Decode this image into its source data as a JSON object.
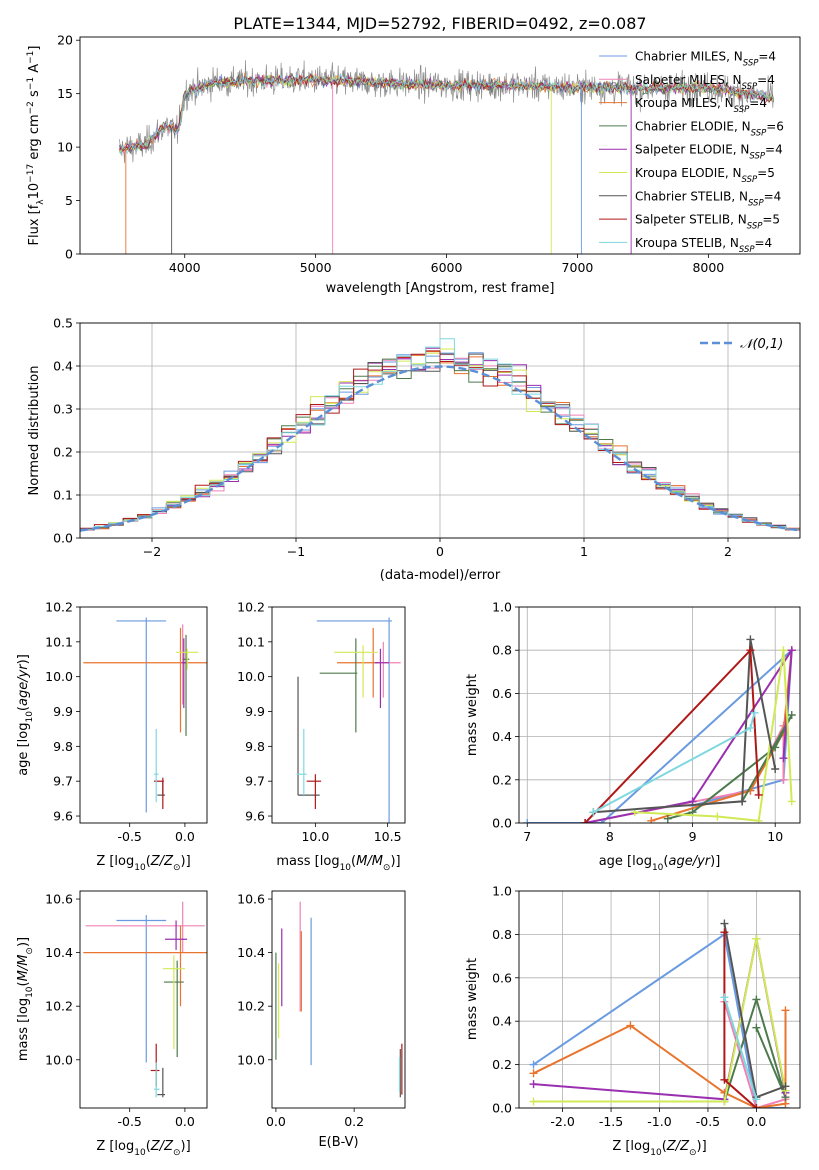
{
  "figure_title": "PLATE=1344, MJD=52792, FIBERID=0492, z=0.087",
  "models": [
    {
      "name": "Chabrier MILES",
      "nssp": "4",
      "color": "#6a9be0"
    },
    {
      "name": "Salpeter MILES",
      "nssp": "4",
      "color": "#ef82b5"
    },
    {
      "name": "Kroupa MILES",
      "nssp": "4",
      "color": "#e8742e"
    },
    {
      "name": "Chabrier ELODIE",
      "nssp": "6",
      "color": "#4d7a4d"
    },
    {
      "name": "Salpeter ELODIE",
      "nssp": "4",
      "color": "#9a2fb0"
    },
    {
      "name": "Kroupa ELODIE",
      "nssp": "5",
      "color": "#d0ea55"
    },
    {
      "name": "Chabrier STELIB",
      "nssp": "4",
      "color": "#555555"
    },
    {
      "name": "Salpeter STELIB",
      "nssp": "5",
      "color": "#b01818"
    },
    {
      "name": "Kroupa STELIB",
      "nssp": "4",
      "color": "#7fd8df"
    }
  ],
  "chart_data": [
    {
      "id": "spectrum",
      "type": "line",
      "xlabel": "wavelength [Angstrom, rest frame]",
      "ylabel": "Flux [f_λ 10^-17 erg cm^-2 s^-1 A^-1]",
      "xlim": [
        3200,
        8700
      ],
      "ylim": [
        0,
        20.3
      ],
      "xticks": [
        4000,
        5000,
        6000,
        7000,
        8000
      ],
      "yticks": [
        0,
        5,
        10,
        15,
        20
      ],
      "data_color": "#8c8c8c",
      "data_range": [
        3500,
        8500
      ],
      "continuum_knots": [
        [
          3500,
          9.8
        ],
        [
          3700,
          10.2
        ],
        [
          3850,
          12.0
        ],
        [
          3950,
          11.5
        ],
        [
          4000,
          15.0
        ],
        [
          4200,
          16.0
        ],
        [
          4500,
          16.2
        ],
        [
          5000,
          16.3
        ],
        [
          5500,
          16.0
        ],
        [
          6000,
          15.8
        ],
        [
          6500,
          15.8
        ],
        [
          7000,
          15.6
        ],
        [
          7500,
          15.5
        ],
        [
          8000,
          15.6
        ],
        [
          8500,
          14.6
        ]
      ],
      "legend_placement": "top-right"
    },
    {
      "id": "residual-histogram",
      "type": "histogram",
      "xlabel": "(data-model)/error",
      "ylabel": "Normed distribution",
      "xlim": [
        -2.5,
        2.5
      ],
      "ylim": [
        0,
        0.5
      ],
      "xticks": [
        -2,
        -1,
        0,
        1,
        2
      ],
      "yticks": [
        0.0,
        0.1,
        0.2,
        0.3,
        0.4,
        0.5
      ],
      "bin_width": 0.1,
      "reference_curve": {
        "label": "𝒩(0,1)",
        "color": "#5b8fd6",
        "mean": 0,
        "sigma": 1
      },
      "grid": true,
      "legend_placement": "top-right"
    },
    {
      "id": "age-vs-Z",
      "type": "errorbar",
      "xlabel": "Z [log10(Z/Z⊙)]",
      "ylabel": "age [log10(age/yr)]",
      "xlim": [
        -0.95,
        0.2
      ],
      "ylim": [
        9.58,
        10.2
      ],
      "xticks": [
        -0.5,
        0.0
      ],
      "yticks": [
        9.6,
        9.7,
        9.8,
        9.9,
        10.0,
        10.1,
        10.2
      ],
      "points": [
        {
          "model": 0,
          "x": -0.35,
          "xerr": [
            0.27,
            0.18
          ],
          "y": 10.16,
          "yerr": [
            0.55,
            0.01
          ]
        },
        {
          "model": 1,
          "x": -0.02,
          "xerr": [
            0.02,
            0.02
          ],
          "y": 10.07,
          "yerr": [
            0.15,
            0.08
          ]
        },
        {
          "model": 2,
          "x": -0.04,
          "xerr": [
            0.88,
            0.25
          ],
          "y": 10.04,
          "yerr": [
            0.2,
            0.1
          ]
        },
        {
          "model": 3,
          "x": 0.01,
          "xerr": [
            0.03,
            0.03
          ],
          "y": 10.05,
          "yerr": [
            0.22,
            0.07
          ]
        },
        {
          "model": 4,
          "x": -0.01,
          "xerr": [
            0.02,
            0.02
          ],
          "y": 10.04,
          "yerr": [
            0.13,
            0.07
          ]
        },
        {
          "model": 5,
          "x": 0.02,
          "xerr": [
            0.1,
            0.1
          ],
          "y": 10.07,
          "yerr": [
            0.05,
            0.01
          ]
        },
        {
          "model": 6,
          "x": -0.2,
          "xerr": [
            0.05,
            0.02
          ],
          "y": 9.66,
          "yerr": [
            0.0,
            0.04
          ]
        },
        {
          "model": 7,
          "x": -0.2,
          "xerr": [
            0.08,
            0.01
          ],
          "y": 9.7,
          "yerr": [
            0.08,
            0.01
          ]
        },
        {
          "model": 8,
          "x": -0.26,
          "xerr": [
            0.02,
            0.02
          ],
          "y": 9.72,
          "yerr": [
            0.08,
            0.13
          ]
        }
      ]
    },
    {
      "id": "age-vs-mass",
      "type": "errorbar",
      "xlabel": "mass [log10(M/M⊙)]",
      "ylabel": "",
      "xlim": [
        9.7,
        10.62
      ],
      "ylim": [
        9.58,
        10.2
      ],
      "xticks": [
        10.0,
        10.5
      ],
      "yticks": [
        9.6,
        9.7,
        9.8,
        9.9,
        10.0,
        10.1,
        10.2
      ],
      "points": [
        {
          "model": 0,
          "x": 10.51,
          "xerr": [
            0.5,
            0.02
          ],
          "y": 10.16,
          "yerr": [
            0.58,
            0.01
          ]
        },
        {
          "model": 1,
          "x": 10.47,
          "xerr": [
            0.05,
            0.12
          ],
          "y": 10.04,
          "yerr": [
            0.1,
            0.06
          ]
        },
        {
          "model": 2,
          "x": 10.4,
          "xerr": [
            0.25,
            0.03
          ],
          "y": 10.04,
          "yerr": [
            0.1,
            0.1
          ]
        },
        {
          "model": 3,
          "x": 10.28,
          "xerr": [
            0.25,
            0.01
          ],
          "y": 10.01,
          "yerr": [
            0.17,
            0.1
          ]
        },
        {
          "model": 4,
          "x": 10.45,
          "xerr": [
            0.04,
            0.06
          ],
          "y": 10.04,
          "yerr": [
            0.13,
            0.04
          ]
        },
        {
          "model": 5,
          "x": 10.33,
          "xerr": [
            0.2,
            0.1
          ],
          "y": 10.07,
          "yerr": [
            0.13,
            0.02
          ]
        },
        {
          "model": 6,
          "x": 9.88,
          "xerr": [
            0.0,
            0.15
          ],
          "y": 9.66,
          "yerr": [
            0.0,
            0.34
          ]
        },
        {
          "model": 7,
          "x": 10.0,
          "xerr": [
            0.06,
            0.04
          ],
          "y": 9.7,
          "yerr": [
            0.08,
            0.02
          ]
        },
        {
          "model": 8,
          "x": 9.92,
          "xerr": [
            0.05,
            0.02
          ],
          "y": 9.72,
          "yerr": [
            0.06,
            0.13
          ]
        }
      ]
    },
    {
      "id": "weight-vs-age",
      "type": "line",
      "xlabel": "age [log10(age/yr)]",
      "ylabel": "mass weight",
      "xlim": [
        6.9,
        10.3
      ],
      "ylim": [
        0,
        1.0
      ],
      "xticks": [
        7,
        8,
        9,
        10
      ],
      "yticks": [
        0.0,
        0.2,
        0.4,
        0.6,
        0.8,
        1.0
      ],
      "grid": true,
      "series": [
        {
          "model": 0,
          "points": [
            [
              7.0,
              0.0
            ],
            [
              7.9,
              0.0
            ],
            [
              10.2,
              0.8
            ],
            [
              10.1,
              0.2
            ],
            [
              9.0,
              0.08
            ]
          ]
        },
        {
          "model": 1,
          "points": [
            [
              7.7,
              0.0
            ],
            [
              9.7,
              0.15
            ],
            [
              10.1,
              0.45
            ],
            [
              10.1,
              0.2
            ]
          ]
        },
        {
          "model": 2,
          "points": [
            [
              8.5,
              0.01
            ],
            [
              9.7,
              0.15
            ],
            [
              10.1,
              0.42
            ],
            [
              10.2,
              0.8
            ]
          ]
        },
        {
          "model": 3,
          "points": [
            [
              8.7,
              0.02
            ],
            [
              9.0,
              0.05
            ],
            [
              10.0,
              0.35
            ],
            [
              10.2,
              0.5
            ],
            [
              9.6,
              0.1
            ]
          ]
        },
        {
          "model": 4,
          "points": [
            [
              7.7,
              0.0
            ],
            [
              9.0,
              0.1
            ],
            [
              10.2,
              0.8
            ],
            [
              10.1,
              0.3
            ]
          ]
        },
        {
          "model": 5,
          "points": [
            [
              8.3,
              0.05
            ],
            [
              9.3,
              0.03
            ],
            [
              9.8,
              0.01
            ],
            [
              10.1,
              0.8
            ],
            [
              10.2,
              0.1
            ]
          ]
        },
        {
          "model": 6,
          "points": [
            [
              7.8,
              0.05
            ],
            [
              9.6,
              0.1
            ],
            [
              9.7,
              0.85
            ],
            [
              10.0,
              0.25
            ]
          ]
        },
        {
          "model": 7,
          "points": [
            [
              7.7,
              0.0
            ],
            [
              9.7,
              0.8
            ],
            [
              9.8,
              0.13
            ]
          ]
        },
        {
          "model": 8,
          "points": [
            [
              7.8,
              0.05
            ],
            [
              9.7,
              0.44
            ],
            [
              9.75,
              0.51
            ]
          ]
        }
      ]
    },
    {
      "id": "mass-vs-Z",
      "type": "errorbar",
      "xlabel": "Z [log10(Z/Z⊙)]",
      "ylabel": "mass [log10(M/M⊙)]",
      "xlim": [
        -0.95,
        0.2
      ],
      "ylim": [
        9.82,
        10.63
      ],
      "xticks": [
        -0.5,
        0.0
      ],
      "yticks": [
        10.0,
        10.2,
        10.4,
        10.6
      ],
      "points": [
        {
          "model": 0,
          "x": -0.35,
          "xerr": [
            0.27,
            0.18
          ],
          "y": 10.52,
          "yerr": [
            0.53,
            0.02
          ]
        },
        {
          "model": 1,
          "x": -0.02,
          "xerr": [
            0.88,
            0.2
          ],
          "y": 10.5,
          "yerr": [
            0.1,
            0.09
          ]
        },
        {
          "model": 2,
          "x": -0.04,
          "xerr": [
            0.88,
            0.25
          ],
          "y": 10.4,
          "yerr": [
            0.2,
            0.1
          ]
        },
        {
          "model": 3,
          "x": -0.07,
          "xerr": [
            0.12,
            0.06
          ],
          "y": 10.29,
          "yerr": [
            0.28,
            0.08
          ]
        },
        {
          "model": 4,
          "x": -0.08,
          "xerr": [
            0.1,
            0.1
          ],
          "y": 10.45,
          "yerr": [
            0.04,
            0.07
          ]
        },
        {
          "model": 5,
          "x": -0.1,
          "xerr": [
            0.1,
            0.1
          ],
          "y": 10.34,
          "yerr": [
            0.3,
            0.05
          ]
        },
        {
          "model": 6,
          "x": -0.2,
          "xerr": [
            0.05,
            0.02
          ],
          "y": 9.87,
          "yerr": [
            0.01,
            0.1
          ]
        },
        {
          "model": 7,
          "x": -0.26,
          "xerr": [
            0.05,
            0.03
          ],
          "y": 9.96,
          "yerr": [
            0.06,
            0.1
          ]
        },
        {
          "model": 8,
          "x": -0.26,
          "xerr": [
            0.02,
            0.03
          ],
          "y": 9.89,
          "yerr": [
            0.03,
            0.1
          ]
        }
      ]
    },
    {
      "id": "mass-vs-ebv",
      "type": "errorbar",
      "xlabel": "E(B-V)",
      "ylabel": "",
      "xlim": [
        -0.01,
        0.33
      ],
      "ylim": [
        9.82,
        10.63
      ],
      "xticks": [
        0.0,
        0.2
      ],
      "yticks": [
        10.0,
        10.2,
        10.4,
        10.6
      ],
      "points": [
        {
          "model": 0,
          "x": 0.09,
          "xerr": [
            0,
            0
          ],
          "y": 10.2,
          "yerr": [
            0.22,
            0.33
          ]
        },
        {
          "model": 1,
          "x": 0.062,
          "xerr": [
            0,
            0
          ],
          "y": 10.4,
          "yerr": [
            0.22,
            0.19
          ]
        },
        {
          "model": 2,
          "x": 0.065,
          "xerr": [
            0,
            0
          ],
          "y": 10.3,
          "yerr": [
            0.12,
            0.18
          ]
        },
        {
          "model": 3,
          "x": 0.0,
          "xerr": [
            0,
            0
          ],
          "y": 10.2,
          "yerr": [
            0.2,
            0.2
          ]
        },
        {
          "model": 4,
          "x": 0.015,
          "xerr": [
            0,
            0
          ],
          "y": 10.35,
          "yerr": [
            0.15,
            0.14
          ]
        },
        {
          "model": 5,
          "x": 0.007,
          "xerr": [
            0,
            0
          ],
          "y": 10.24,
          "yerr": [
            0.16,
            0.12
          ]
        },
        {
          "model": 6,
          "x": 0.318,
          "xerr": [
            0,
            0
          ],
          "y": 9.94,
          "yerr": [
            0.08,
            0.1
          ]
        },
        {
          "model": 7,
          "x": 0.322,
          "xerr": [
            0,
            0
          ],
          "y": 9.97,
          "yerr": [
            0.1,
            0.09
          ]
        },
        {
          "model": 8,
          "x": 0.316,
          "xerr": [
            0,
            0
          ],
          "y": 9.93,
          "yerr": [
            0.05,
            0.08
          ]
        }
      ]
    },
    {
      "id": "weight-vs-Z",
      "type": "line",
      "xlabel": "Z [log10(Z/Z⊙)]",
      "ylabel": "mass weight",
      "xlim": [
        -2.45,
        0.45
      ],
      "ylim": [
        0,
        1.0
      ],
      "xticks": [
        -2.0,
        -1.5,
        -1.0,
        -0.5,
        0.0
      ],
      "yticks": [
        0.0,
        0.2,
        0.4,
        0.6,
        0.8,
        1.0
      ],
      "grid": true,
      "series": [
        {
          "model": 0,
          "points": [
            [
              -2.3,
              0.2
            ],
            [
              -0.33,
              0.8
            ],
            [
              0.0,
              0.0
            ],
            [
              0.3,
              0.0
            ]
          ]
        },
        {
          "model": 1,
          "points": [
            [
              -0.33,
              0.49
            ],
            [
              0.0,
              0.0
            ],
            [
              0.3,
              0.04
            ]
          ]
        },
        {
          "model": 2,
          "points": [
            [
              -2.3,
              0.16
            ],
            [
              -1.3,
              0.38
            ],
            [
              -0.33,
              0.07
            ],
            [
              0.0,
              0.0
            ],
            [
              0.3,
              0.02
            ],
            [
              0.3,
              0.45
            ]
          ]
        },
        {
          "model": 3,
          "points": [
            [
              -0.33,
              0.03
            ],
            [
              0.0,
              0.5
            ],
            [
              0.3,
              0.05
            ],
            [
              0.0,
              0.37
            ]
          ]
        },
        {
          "model": 4,
          "points": [
            [
              -2.3,
              0.11
            ],
            [
              -0.33,
              0.04
            ],
            [
              0.0,
              0.78
            ],
            [
              0.3,
              0.07
            ]
          ]
        },
        {
          "model": 5,
          "points": [
            [
              -2.3,
              0.03
            ],
            [
              -0.33,
              0.03
            ],
            [
              0.0,
              0.78
            ],
            [
              0.3,
              0.08
            ]
          ]
        },
        {
          "model": 6,
          "points": [
            [
              -0.33,
              0.85
            ],
            [
              0.0,
              0.05
            ],
            [
              0.3,
              0.1
            ]
          ]
        },
        {
          "model": 7,
          "points": [
            [
              -0.33,
              0.81
            ],
            [
              -0.33,
              0.13
            ],
            [
              0.0,
              0.0
            ]
          ]
        },
        {
          "model": 8,
          "points": [
            [
              -0.33,
              0.51
            ],
            [
              0.0,
              0.04
            ]
          ]
        }
      ]
    }
  ]
}
